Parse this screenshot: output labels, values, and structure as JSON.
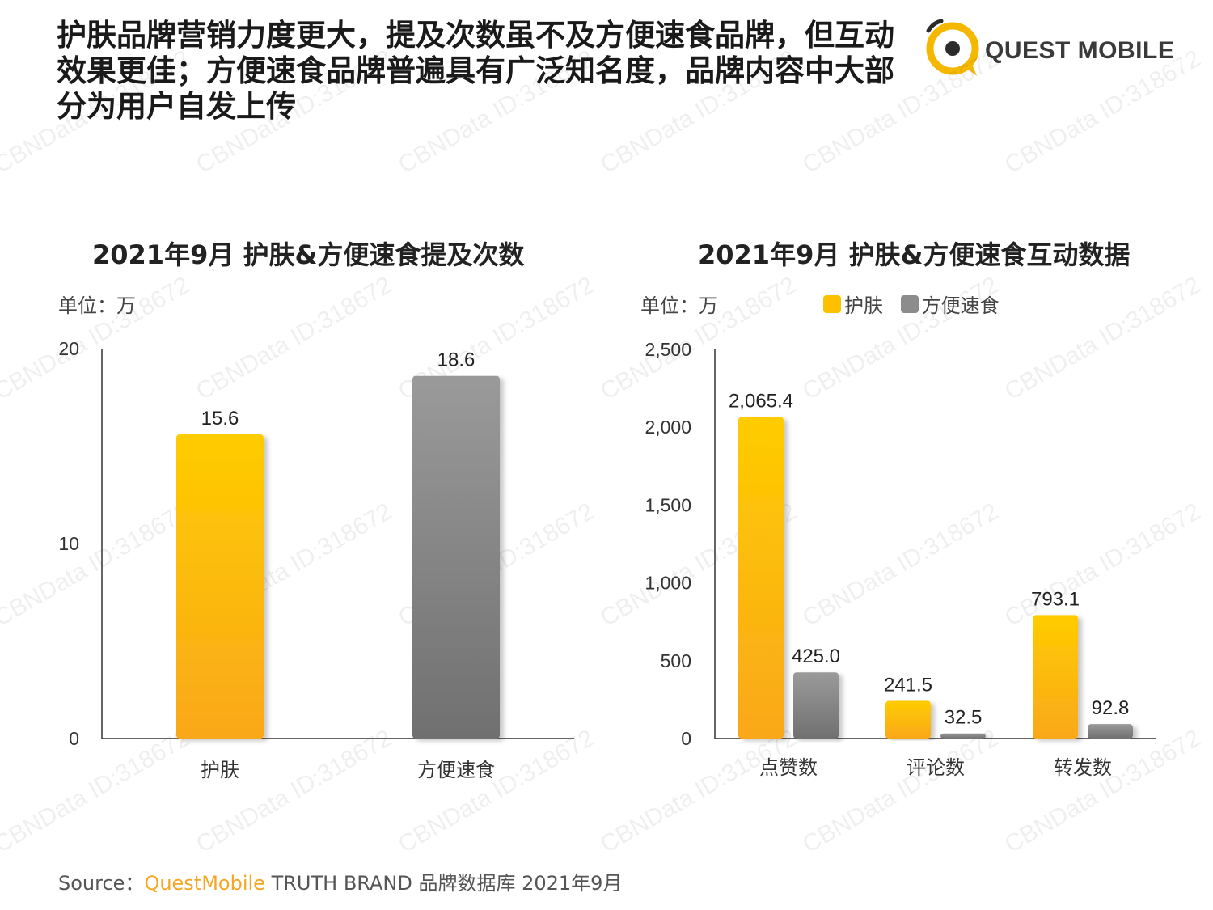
{
  "headline": "护肤品牌营销力度更大，提及次数虽不及方便速食品牌，但互动效果更佳；方便速食品牌普遍具有广泛知名度，品牌内容中大部分为用户自发上传",
  "logo_text": "QUEST MOBILE",
  "watermark_text": "CBNData ID:318672",
  "colors": {
    "skincare": "#FFC000",
    "instant_food": "#8C8C8C",
    "brand_orange": "#F5A623"
  },
  "chart_data": [
    {
      "type": "bar",
      "title": "2021年9月 护肤&方便速食提及次数",
      "unit": "单位：万",
      "categories": [
        "护肤",
        "方便速食"
      ],
      "values": [
        15.6,
        18.6
      ],
      "value_labels": [
        "15.6",
        "18.6"
      ],
      "ylim": [
        0,
        20
      ],
      "yticks": [
        0,
        10,
        20
      ],
      "ytick_labels": [
        "0",
        "10",
        "20"
      ],
      "bar_colors": [
        "#FFC000",
        "#8C8C8C"
      ],
      "grid": false
    },
    {
      "type": "bar",
      "title": "2021年9月 护肤&方便速食互动数据",
      "unit": "单位：万",
      "categories": [
        "点赞数",
        "评论数",
        "转发数"
      ],
      "series": [
        {
          "name": "护肤",
          "values": [
            2065.4,
            241.5,
            793.1
          ],
          "value_labels": [
            "2,065.4",
            "241.5",
            "793.1"
          ],
          "color": "#FFC000"
        },
        {
          "name": "方便速食",
          "values": [
            425.0,
            32.5,
            92.8
          ],
          "value_labels": [
            "425.0",
            "32.5",
            "92.8"
          ],
          "color": "#8C8C8C"
        }
      ],
      "ylim": [
        0,
        2500
      ],
      "yticks": [
        0,
        500,
        1000,
        1500,
        2000,
        2500
      ],
      "ytick_labels": [
        "0",
        "500",
        "1,000",
        "1,500",
        "2,000",
        "2,500"
      ],
      "legend_position": "top",
      "grid": false
    }
  ],
  "source": {
    "prefix": "Source：",
    "brand": "QuestMobile",
    "rest": " TRUTH BRAND 品牌数据库 2021年9月"
  }
}
